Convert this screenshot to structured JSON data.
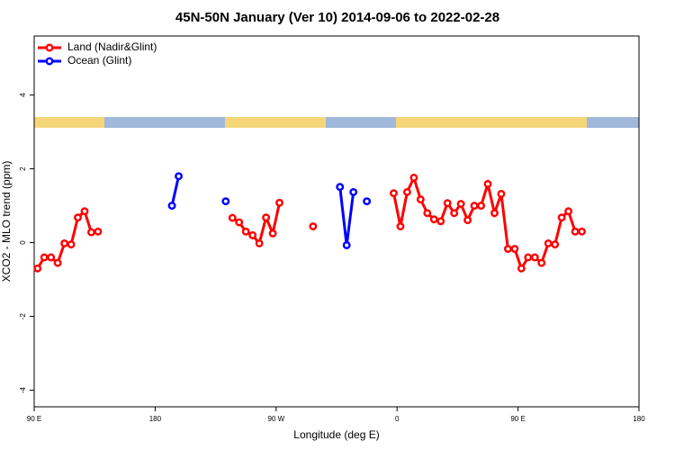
{
  "chart_data": {
    "type": "line",
    "title": "45N-50N January (Ver 10)   2014-09-06 to 2022-02-28",
    "x_label": "Longitude (deg E)",
    "y_label": "XCO2 - MLO trend (ppm)",
    "xlim": [
      90,
      540
    ],
    "ylim": [
      -4.45,
      5.6
    ],
    "xticks": [
      {
        "value": 90,
        "label": "90 E"
      },
      {
        "value": 180,
        "label": "180"
      },
      {
        "value": 270,
        "label": "90 W"
      },
      {
        "value": 360,
        "label": "0"
      },
      {
        "value": 450,
        "label": "90 E"
      },
      {
        "value": 540,
        "label": "180"
      }
    ],
    "yticks": [
      -4,
      -2,
      0,
      2,
      4
    ],
    "legend": "topleft",
    "series": [
      {
        "name": "Land (Nadir&Glint)",
        "color": "#ff0000",
        "x": [
          92.5,
          97.5,
          102.5,
          107.5,
          112.5,
          117.5,
          122.5,
          127.5,
          132.5,
          137.5,
          142.5,
          237.5,
          242.5,
          247.5,
          252.5,
          257.5,
          262.5,
          267.5,
          272.5,
          277.5,
          297.5,
          302.5,
          357.5,
          362.5,
          367.5,
          372.5,
          377.5,
          382.5,
          387.5,
          392.5,
          397.5,
          402.5,
          407.5,
          412.5,
          417.5,
          422.5,
          427.5,
          432.5,
          437.5,
          442.5,
          447.5,
          452.5,
          457.5,
          462.5,
          467.5,
          472.5,
          477.5,
          482.5,
          487.5,
          492.5,
          497.5
        ],
        "values": [
          -0.7,
          -0.4,
          -0.4,
          -0.55,
          -0.02,
          -0.05,
          0.68,
          0.85,
          0.28,
          0.3,
          null,
          0.67,
          0.55,
          0.3,
          0.2,
          -0.02,
          0.68,
          0.25,
          1.08,
          null,
          0.44,
          null,
          1.34,
          0.44,
          1.37,
          1.76,
          1.17,
          0.8,
          0.63,
          0.58,
          1.07,
          0.8,
          1.05,
          0.61,
          1.0,
          1.0,
          1.59,
          0.8,
          1.32,
          -0.17,
          -0.17,
          -0.7,
          -0.4,
          -0.4,
          -0.55,
          -0.02,
          -0.05,
          0.68,
          0.85,
          0.3,
          0.3
        ]
      },
      {
        "name": "Ocean (Glint)",
        "color": "#0000ff",
        "x": [
          192.5,
          197.5,
          202.5,
          232.5,
          237.5,
          317.5,
          322.5,
          327.5,
          332.5,
          337.5
        ],
        "values": [
          1.0,
          1.8,
          null,
          1.12,
          null,
          1.51,
          -0.07,
          1.37,
          null,
          1.12
        ]
      }
    ]
  }
}
